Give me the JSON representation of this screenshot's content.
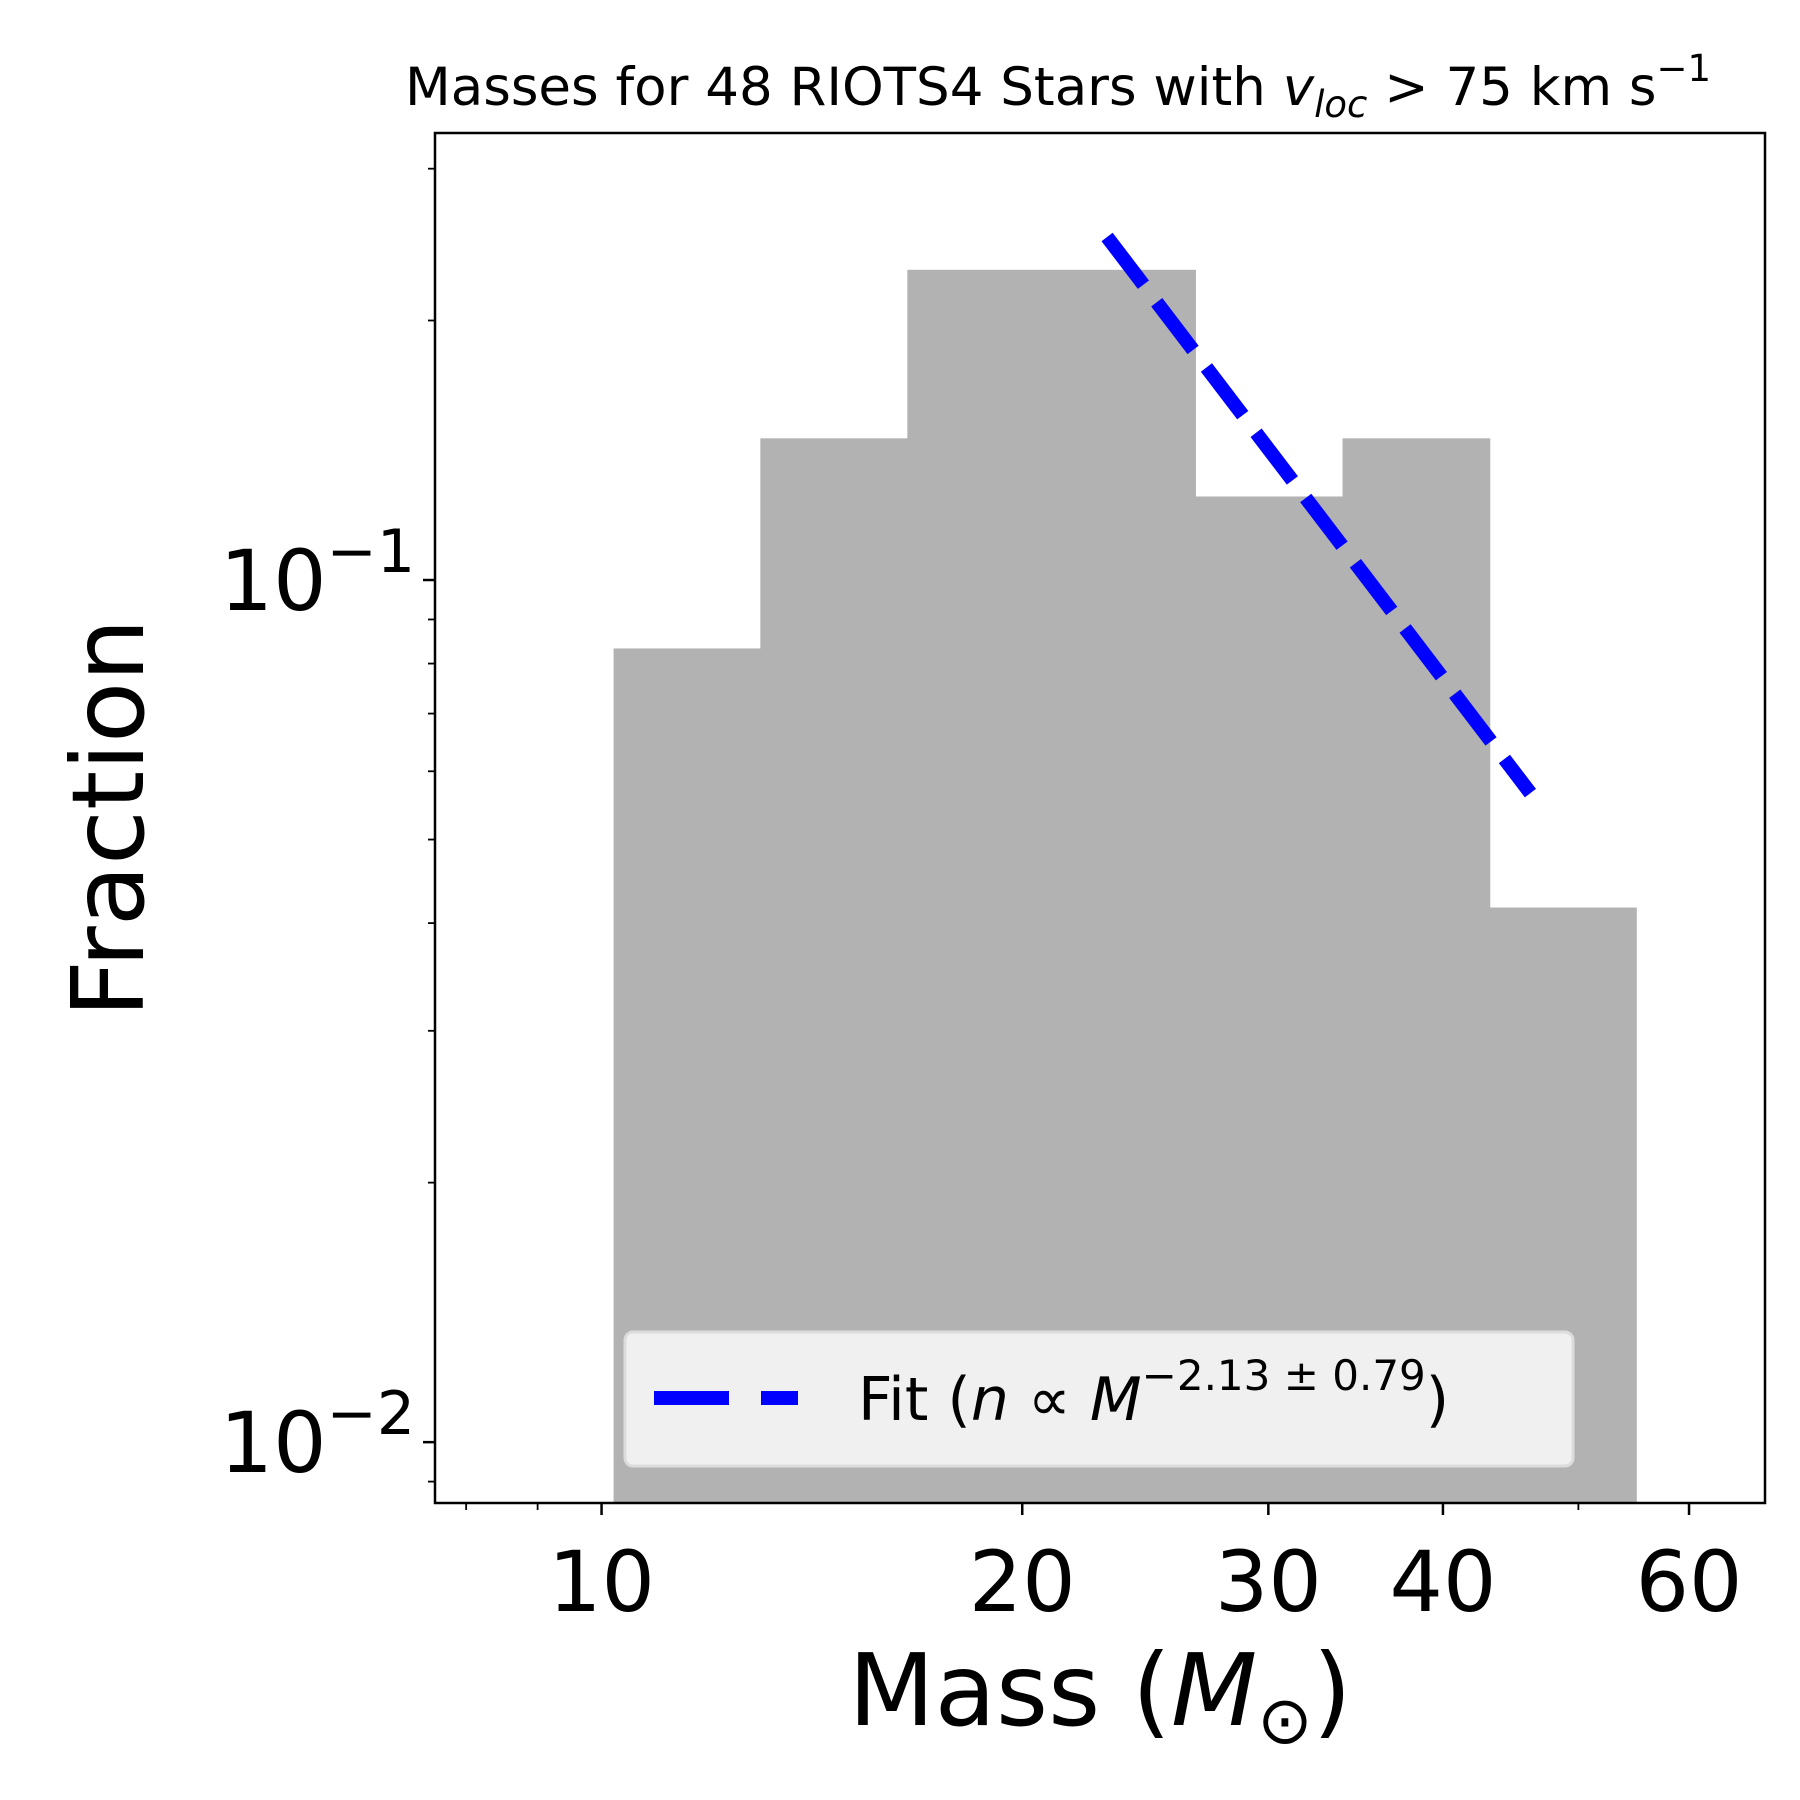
{
  "chart_data": {
    "type": "bar",
    "title": {
      "prefix": "Masses for 48 RIOTS4 Stars with ",
      "var": "v",
      "var_sub": "loc",
      "suffix": " > 75 km s",
      "suffix_sup": "−1"
    },
    "xlabel": {
      "prefix": "Mass (",
      "var": "M",
      "sub": "⊙",
      "suffix": ")"
    },
    "ylabel": "Fraction",
    "xscale": "log",
    "yscale": "log",
    "xlim": [
      7.6,
      68
    ],
    "ylim": [
      0.0085,
      0.33
    ],
    "xticks": [
      {
        "value": 10,
        "label": "10"
      },
      {
        "value": 20,
        "label": "20"
      },
      {
        "value": 30,
        "label": "30"
      },
      {
        "value": 40,
        "label": "40"
      },
      {
        "value": 60,
        "label": "60"
      }
    ],
    "yticks": [
      {
        "value": 0.1,
        "base": "10",
        "exp": "−1"
      },
      {
        "value": 0.01,
        "base": "10",
        "exp": "−2"
      }
    ],
    "histogram": {
      "bin_edges": [
        10.2,
        12.99,
        16.55,
        26.6,
        33.9,
        43.2,
        55.0
      ],
      "values": [
        0.0833,
        0.146,
        0.229,
        0.125,
        0.146,
        0.0417
      ],
      "color": "#b2b2b2"
    },
    "fit": {
      "x": [
        23.0,
        46.2
      ],
      "y": [
        0.25,
        0.0566
      ],
      "color": "#0000ff",
      "style": "dashed"
    },
    "legend": {
      "placement": "lower-center",
      "label_prefix": "Fit (",
      "n": "n",
      "prop": " ∝ ",
      "M": "M",
      "exponent": "−2.13 ± 0.79",
      "label_suffix": ")"
    }
  }
}
